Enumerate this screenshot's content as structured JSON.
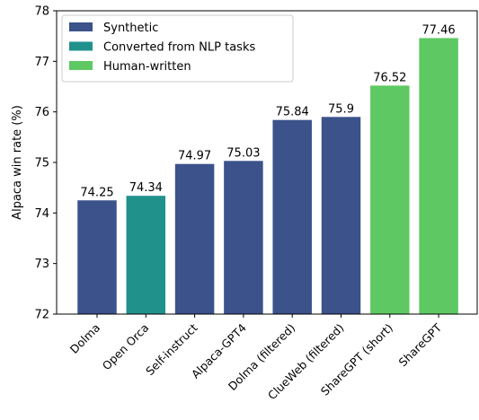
{
  "chart_data": {
    "type": "bar",
    "title": "",
    "xlabel": "",
    "ylabel": "Alpaca win rate (%)",
    "ylim": [
      72,
      78
    ],
    "yticks": [
      72,
      73,
      74,
      75,
      76,
      77,
      78
    ],
    "grid": false,
    "legend_position": "top-left",
    "categories": [
      "Dolma",
      "Open Orca",
      "Self-instruct",
      "Alpaca-GPT4",
      "Dolma (filtered)",
      "ClueWeb (filtered)",
      "ShareGPT (short)",
      "ShareGPT"
    ],
    "values": [
      74.25,
      74.34,
      74.97,
      75.03,
      75.84,
      75.9,
      76.52,
      77.46
    ],
    "value_labels": [
      "74.25",
      "74.34",
      "74.97",
      "75.03",
      "75.84",
      "75.9",
      "76.52",
      "77.46"
    ],
    "bar_groups": [
      "Synthetic",
      "Converted from NLP tasks",
      "Synthetic",
      "Synthetic",
      "Synthetic",
      "Synthetic",
      "Human-written",
      "Human-written"
    ],
    "legend": [
      {
        "name": "Synthetic",
        "color": "#3b528b"
      },
      {
        "name": "Converted from NLP tasks",
        "color": "#21918c"
      },
      {
        "name": "Human-written",
        "color": "#5ec962"
      }
    ]
  }
}
